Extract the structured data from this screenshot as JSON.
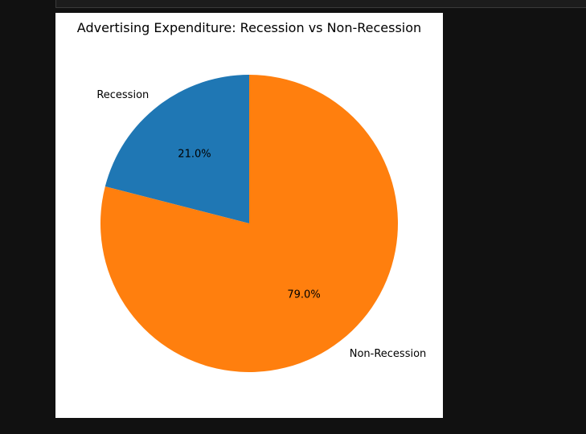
{
  "chart_data": {
    "type": "pie",
    "title": "Advertising Expenditure: Recession vs Non-Recession",
    "categories": [
      "Recession",
      "Non-Recession"
    ],
    "values": [
      21.0,
      79.0
    ],
    "percent_labels": [
      "21.0%",
      "79.0%"
    ],
    "colors": [
      "#1f77b4",
      "#ff7f0e"
    ],
    "start_angle_deg": 90,
    "direction": "counterclockwise"
  }
}
